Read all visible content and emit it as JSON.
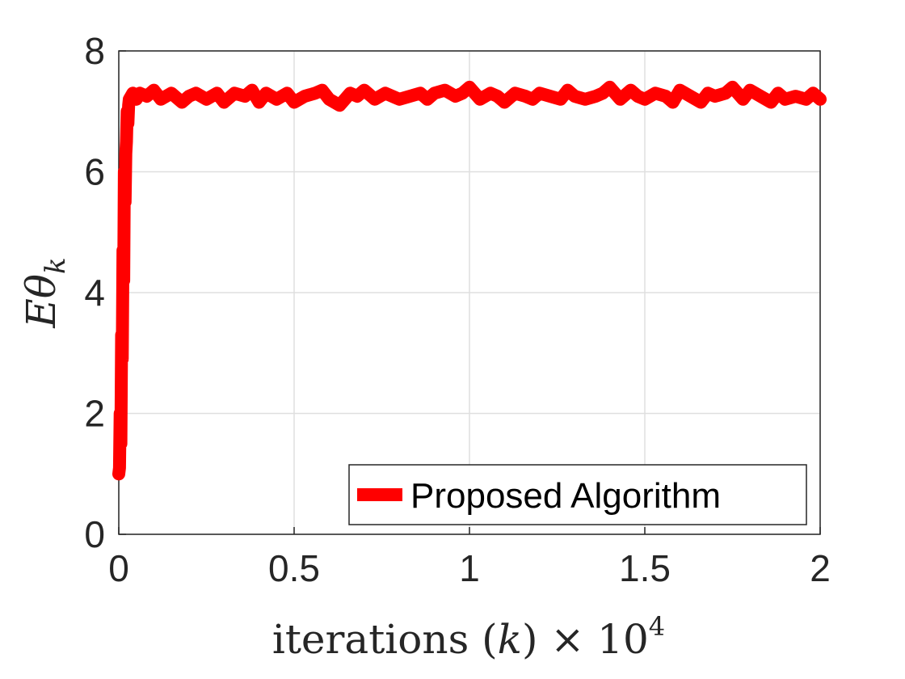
{
  "chart_data": {
    "type": "line",
    "xlabel": "iterations (k) × 10⁴",
    "xlabel_parts": {
      "main": "iterations (",
      "var": "k",
      "close": ") × 10",
      "exp": "4"
    },
    "ylabel": "Eθ_k",
    "ylabel_parts": {
      "main": "Eθ",
      "sub": "k"
    },
    "xlim": [
      0,
      2
    ],
    "ylim": [
      0,
      8
    ],
    "xticks": [
      0,
      0.5,
      1,
      1.5,
      2
    ],
    "xtick_labels": [
      "0",
      "0.5",
      "1",
      "1.5",
      "2"
    ],
    "yticks": [
      0,
      2,
      4,
      6,
      8
    ],
    "ytick_labels": [
      "0",
      "2",
      "4",
      "6",
      "8"
    ],
    "grid": true,
    "legend_position": "bottom-right",
    "series": [
      {
        "name": "Proposed Algorithm",
        "color": "#ff0000",
        "x": [
          0,
          0.002,
          0.004,
          0.006,
          0.008,
          0.01,
          0.012,
          0.014,
          0.016,
          0.018,
          0.02,
          0.022,
          0.024,
          0.026,
          0.028,
          0.03,
          0.035,
          0.04,
          0.05,
          0.06,
          0.08,
          0.1,
          0.12,
          0.15,
          0.18,
          0.2,
          0.22,
          0.25,
          0.28,
          0.3,
          0.33,
          0.36,
          0.38,
          0.4,
          0.42,
          0.45,
          0.48,
          0.5,
          0.53,
          0.56,
          0.58,
          0.6,
          0.63,
          0.66,
          0.68,
          0.7,
          0.73,
          0.76,
          0.78,
          0.8,
          0.83,
          0.86,
          0.88,
          0.9,
          0.93,
          0.96,
          0.98,
          1.0,
          1.03,
          1.06,
          1.08,
          1.1,
          1.13,
          1.16,
          1.18,
          1.2,
          1.23,
          1.26,
          1.28,
          1.3,
          1.33,
          1.36,
          1.38,
          1.4,
          1.43,
          1.46,
          1.48,
          1.5,
          1.53,
          1.56,
          1.58,
          1.6,
          1.63,
          1.66,
          1.68,
          1.7,
          1.73,
          1.75,
          1.78,
          1.8,
          1.83,
          1.86,
          1.88,
          1.9,
          1.93,
          1.96,
          1.98,
          2.0
        ],
        "values": [
          1.0,
          1.1,
          2.0,
          1.5,
          3.3,
          2.9,
          4.7,
          4.2,
          6.0,
          5.5,
          6.3,
          6.5,
          7.0,
          6.8,
          7.1,
          7.2,
          7.25,
          7.3,
          7.2,
          7.3,
          7.25,
          7.35,
          7.2,
          7.3,
          7.15,
          7.25,
          7.3,
          7.2,
          7.3,
          7.15,
          7.3,
          7.25,
          7.35,
          7.15,
          7.3,
          7.2,
          7.3,
          7.15,
          7.25,
          7.3,
          7.35,
          7.2,
          7.1,
          7.3,
          7.25,
          7.35,
          7.2,
          7.3,
          7.25,
          7.2,
          7.25,
          7.3,
          7.2,
          7.3,
          7.35,
          7.25,
          7.3,
          7.4,
          7.2,
          7.3,
          7.25,
          7.15,
          7.3,
          7.25,
          7.2,
          7.3,
          7.25,
          7.2,
          7.35,
          7.25,
          7.2,
          7.25,
          7.3,
          7.4,
          7.2,
          7.35,
          7.25,
          7.2,
          7.3,
          7.25,
          7.15,
          7.35,
          7.25,
          7.15,
          7.3,
          7.25,
          7.3,
          7.4,
          7.2,
          7.35,
          7.25,
          7.15,
          7.3,
          7.2,
          7.25,
          7.2,
          7.3,
          7.2
        ]
      }
    ]
  }
}
